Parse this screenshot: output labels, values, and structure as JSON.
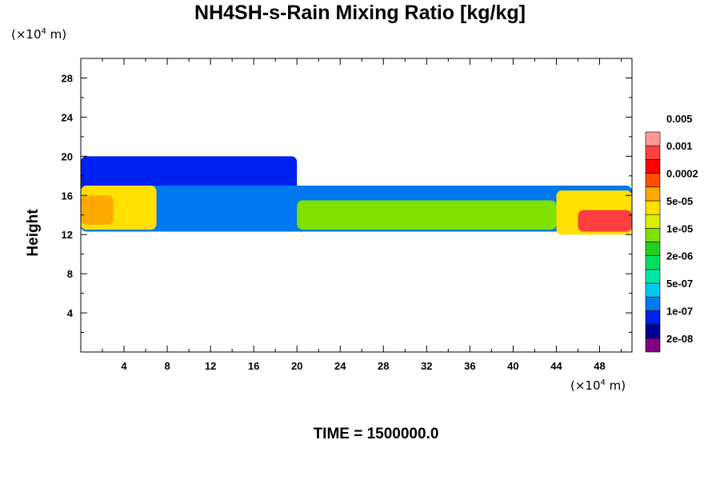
{
  "chart_data": {
    "type": "heatmap",
    "title": "NH4SH-s-Rain Mixing Ratio [kg/kg]",
    "ylabel": "Height",
    "x_unit": {
      "prefix": "(×10",
      "exp": "4",
      "suffix": " m)"
    },
    "y_unit": {
      "prefix": "(×10",
      "exp": "4",
      "suffix": " m)"
    },
    "xlim": [
      0,
      51
    ],
    "ylim": [
      0,
      30
    ],
    "x_ticks": [
      4,
      8,
      12,
      16,
      20,
      24,
      28,
      32,
      36,
      40,
      44,
      48
    ],
    "y_ticks": [
      4,
      8,
      12,
      16,
      20,
      24,
      28
    ],
    "colorbar": {
      "labels": [
        "0.005",
        "0.001",
        "0.0002",
        "5e-05",
        "1e-05",
        "2e-06",
        "5e-07",
        "1e-07",
        "2e-08"
      ],
      "colors": [
        "#800080",
        "#000098",
        "#0020f0",
        "#0078f0",
        "#00c8f0",
        "#00e8a8",
        "#00e060",
        "#20d020",
        "#80e000",
        "#d8f000",
        "#ffe000",
        "#ffa800",
        "#ff5000",
        "#ff0000",
        "#ff4040",
        "#ff9898"
      ]
    },
    "time_label": "TIME = 1500000.0",
    "regions": [
      {
        "x": [
          0,
          20
        ],
        "y": [
          15.5,
          20
        ],
        "level": 2
      },
      {
        "x": [
          0,
          51
        ],
        "y": [
          12.3,
          17
        ],
        "level": 3
      },
      {
        "x": [
          0,
          7
        ],
        "y": [
          12.5,
          17
        ],
        "level": 10
      },
      {
        "x": [
          0,
          3
        ],
        "y": [
          13,
          16
        ],
        "level": 11
      },
      {
        "x": [
          20,
          44
        ],
        "y": [
          12.5,
          15.5
        ],
        "level": 8
      },
      {
        "x": [
          44,
          51
        ],
        "y": [
          12,
          16.5
        ],
        "level": 10
      },
      {
        "x": [
          46,
          51
        ],
        "y": [
          12.3,
          14.5
        ],
        "level": 14
      }
    ]
  }
}
